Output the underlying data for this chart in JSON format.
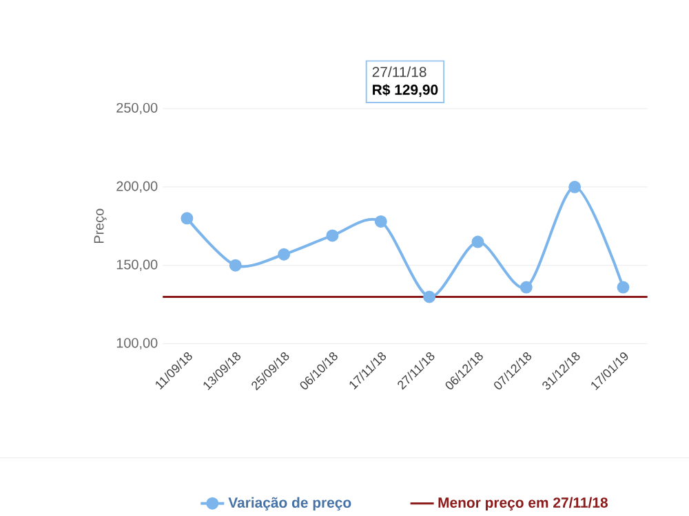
{
  "chart_data": {
    "type": "line",
    "ylabel": "Preço",
    "categories": [
      "11/09/18",
      "13/09/18",
      "25/09/18",
      "06/10/18",
      "17/11/18",
      "27/11/18",
      "06/12/18",
      "07/12/18",
      "31/12/18",
      "17/01/19"
    ],
    "series": [
      {
        "name": "Variação de preço",
        "color": "#7cb5ec",
        "values": [
          180,
          150,
          157,
          169,
          178,
          129.9,
          165,
          136,
          200,
          136
        ]
      }
    ],
    "ylim": [
      100,
      250
    ],
    "yticks": [
      {
        "value": 100,
        "label": "100,00"
      },
      {
        "value": 150,
        "label": "150,00"
      },
      {
        "value": 200,
        "label": "200,00"
      },
      {
        "value": 250,
        "label": "250,00"
      }
    ],
    "ref_lines": [
      {
        "axis": "y",
        "value": 129.9,
        "label": "Menor preço em 27/11/18",
        "color": "#8b1a1a"
      }
    ],
    "annotations": [
      "27/11/18",
      "R$ 129,90"
    ],
    "grid": "y",
    "legend": "bottom",
    "marker": "circle",
    "line_style": "solid"
  }
}
